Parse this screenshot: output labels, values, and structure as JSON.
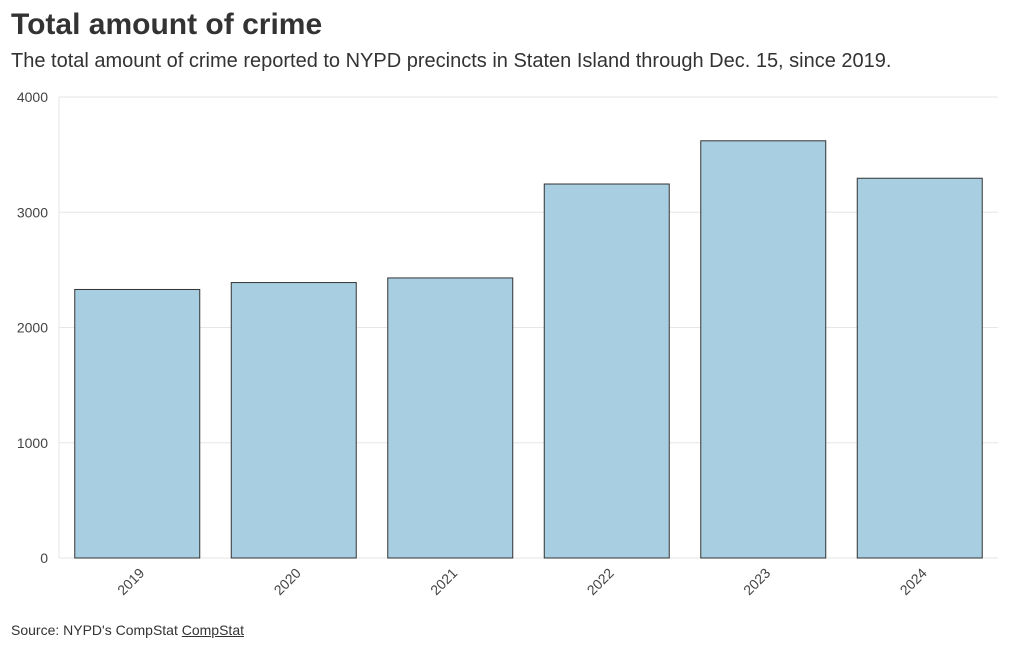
{
  "chart_data": {
    "type": "bar",
    "title": "Total amount of crime",
    "subtitle": "The total amount of crime reported to NYPD precincts in Staten Island through Dec. 15, since 2019.",
    "categories": [
      "2019",
      "2020",
      "2021",
      "2022",
      "2023",
      "2024"
    ],
    "values": [
      2330,
      2390,
      2430,
      3245,
      3620,
      3295
    ],
    "xlabel": "",
    "ylabel": "",
    "ylim": [
      0,
      4000
    ],
    "yticks": [
      "0",
      "1000",
      "2000",
      "3000",
      "4000"
    ],
    "grid": true,
    "bar_color": "#a8cee2",
    "bar_stroke": "#333333"
  },
  "source": {
    "prefix": "Source: NYPD's CompStat",
    "link_label": "CompStat"
  }
}
